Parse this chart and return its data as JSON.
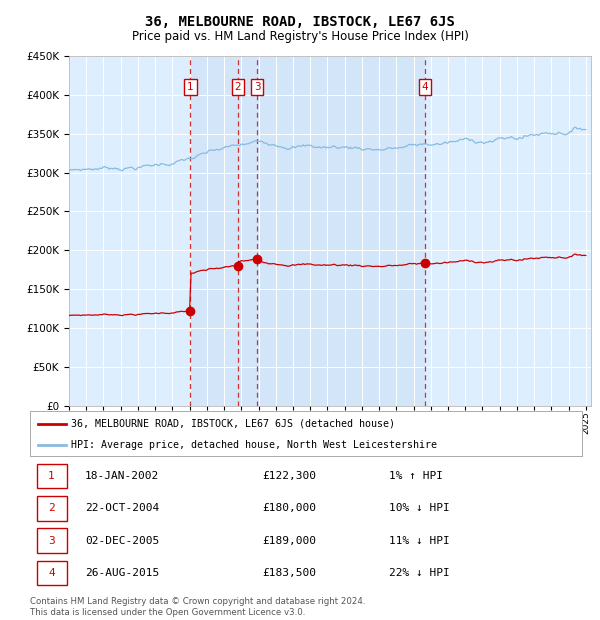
{
  "title": "36, MELBOURNE ROAD, IBSTOCK, LE67 6JS",
  "subtitle": "Price paid vs. HM Land Registry's House Price Index (HPI)",
  "title_fontsize": 10,
  "subtitle_fontsize": 8.5,
  "plot_bg_color": "#ddeeff",
  "grid_color": "#ffffff",
  "hpi_line_color": "#88bbdd",
  "price_line_color": "#cc0000",
  "marker_color": "#cc0000",
  "dashed_line_color": "#cc3333",
  "ylim": [
    0,
    450000
  ],
  "yticks": [
    0,
    50000,
    100000,
    150000,
    200000,
    250000,
    300000,
    350000,
    400000,
    450000
  ],
  "start_year": 1995,
  "end_year": 2025,
  "sales": [
    {
      "label": "1",
      "date_num": 2002.05,
      "price": 122300
    },
    {
      "label": "2",
      "date_num": 2004.81,
      "price": 180000
    },
    {
      "label": "3",
      "date_num": 2005.92,
      "price": 189000
    },
    {
      "label": "4",
      "date_num": 2015.65,
      "price": 183500
    }
  ],
  "legend_line1": "36, MELBOURNE ROAD, IBSTOCK, LE67 6JS (detached house)",
  "legend_line2": "HPI: Average price, detached house, North West Leicestershire",
  "footnote": "Contains HM Land Registry data © Crown copyright and database right 2024.\nThis data is licensed under the Open Government Licence v3.0.",
  "table_rows": [
    [
      "1",
      "18-JAN-2002",
      "£122,300",
      "1% ↑ HPI"
    ],
    [
      "2",
      "22-OCT-2004",
      "£180,000",
      "10% ↓ HPI"
    ],
    [
      "3",
      "02-DEC-2005",
      "£189,000",
      "11% ↓ HPI"
    ],
    [
      "4",
      "26-AUG-2015",
      "£183,500",
      "22% ↓ HPI"
    ]
  ]
}
